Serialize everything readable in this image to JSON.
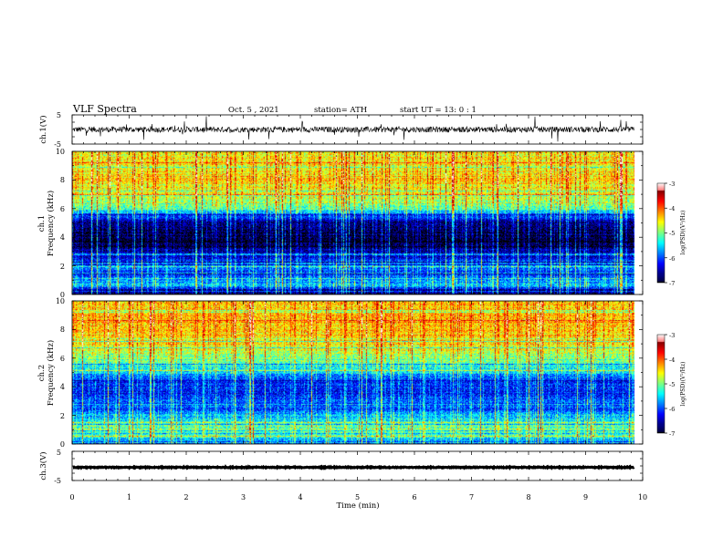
{
  "header": {
    "title": "VLF  Spectra",
    "date": "Oct. 5  , 2021",
    "station": "station= ATH",
    "start": "start  UT  =    13: 0   : 1"
  },
  "chart_data": [
    {
      "type": "line",
      "name": "ch1-waveform",
      "ylabel": "ch.1(V)",
      "ylim": [
        -5,
        5
      ],
      "yticks": [
        "5",
        "-5"
      ],
      "xlim": [
        0,
        10
      ],
      "data_end_min": 9.85,
      "baseline_v": 0.0,
      "noise_amp_v": 1.0,
      "spike_amp_v": 4.0,
      "color": "#000000"
    },
    {
      "type": "heatmap",
      "name": "ch1-spectrogram",
      "ylabel_top": "ch.1",
      "ylabel": "Frequency  (kHz)",
      "ylim": [
        0,
        10
      ],
      "yticks": [
        "0",
        "2",
        "4",
        "6",
        "8",
        "10"
      ],
      "xlim": [
        0,
        10
      ],
      "data_end_min": 9.85,
      "zlabel": "log(PSD)(V²/Hz)",
      "zlim": [
        -7,
        -3
      ],
      "zticks": [
        "-3",
        "-4",
        "-5",
        "-6",
        "-7"
      ],
      "band_profile_khz_logpsd": [
        [
          0,
          -6.9
        ],
        [
          0.3,
          -6.6
        ],
        [
          0.6,
          -5.6
        ],
        [
          1.0,
          -6.0
        ],
        [
          1.5,
          -6.2
        ],
        [
          2.0,
          -5.8
        ],
        [
          2.5,
          -6.4
        ],
        [
          3.0,
          -6.6
        ],
        [
          3.5,
          -6.9
        ],
        [
          4.0,
          -7.0
        ],
        [
          5.0,
          -6.8
        ],
        [
          5.5,
          -6.1
        ],
        [
          6.0,
          -5.3
        ],
        [
          7.0,
          -4.7
        ],
        [
          8.0,
          -4.5
        ],
        [
          9.0,
          -4.6
        ],
        [
          10.0,
          -4.6
        ]
      ]
    },
    {
      "type": "heatmap",
      "name": "ch2-spectrogram",
      "ylabel_top": "ch.2",
      "ylabel": "Frequency  (kHz)",
      "ylim": [
        0,
        10
      ],
      "yticks": [
        "0",
        "2",
        "4",
        "6",
        "8",
        "10"
      ],
      "xlim": [
        0,
        10
      ],
      "data_end_min": 9.85,
      "zlabel": "log(PSD)(V²/Hz)",
      "zlim": [
        -7,
        -3
      ],
      "zticks": [
        "-3",
        "-4",
        "-5",
        "-6",
        "-7"
      ],
      "band_profile_khz_logpsd": [
        [
          0,
          -6.2
        ],
        [
          0.5,
          -5.3
        ],
        [
          1.0,
          -5.0
        ],
        [
          1.5,
          -5.4
        ],
        [
          2.0,
          -5.8
        ],
        [
          2.5,
          -6.1
        ],
        [
          3.0,
          -6.0
        ],
        [
          3.5,
          -6.3
        ],
        [
          4.0,
          -6.2
        ],
        [
          4.5,
          -6.2
        ],
        [
          5.0,
          -5.6
        ],
        [
          6.0,
          -5.0
        ],
        [
          7.0,
          -4.6
        ],
        [
          8.0,
          -4.4
        ],
        [
          9.0,
          -4.4
        ],
        [
          10.0,
          -4.5
        ]
      ]
    },
    {
      "type": "line",
      "name": "ch3-waveform",
      "ylabel": "ch.3(V)",
      "ylim": [
        -5,
        5
      ],
      "yticks": [
        "5",
        "-5"
      ],
      "xlim": [
        0,
        10
      ],
      "xlabel": "Time  (min)",
      "xticks": [
        "0",
        "1",
        "2",
        "3",
        "4",
        "5",
        "6",
        "7",
        "8",
        "9",
        "10"
      ],
      "data_end_min": 9.85,
      "baseline_v": -0.5,
      "noise_amp_v": 0.15,
      "spike_amp_v": 0.0,
      "color": "#000000"
    }
  ]
}
